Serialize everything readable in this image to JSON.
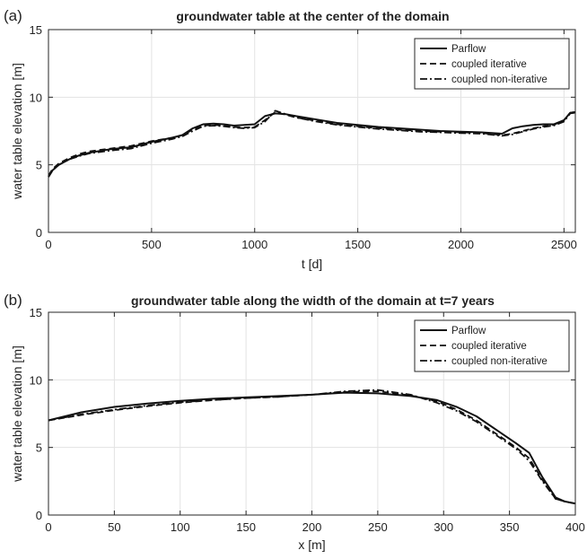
{
  "chart_data": [
    {
      "type": "line",
      "panel_label": "(a)",
      "title": "groundwater table at the center of the domain",
      "xlabel": "t [d]",
      "ylabel": "water table elevation [m]",
      "xlim": [
        0,
        2555
      ],
      "ylim": [
        0,
        15
      ],
      "xticks": [
        0,
        500,
        1000,
        1500,
        2000,
        2500
      ],
      "yticks": [
        0,
        5,
        10,
        15
      ],
      "grid": true,
      "legend_position": "top-right",
      "series": [
        {
          "name": "Parflow",
          "style": "solid",
          "x": [
            0,
            20,
            50,
            100,
            150,
            200,
            300,
            400,
            500,
            600,
            650,
            700,
            750,
            800,
            850,
            900,
            950,
            1000,
            1050,
            1100,
            1150,
            1200,
            1300,
            1400,
            1500,
            1600,
            1700,
            1800,
            1900,
            2000,
            2100,
            2200,
            2250,
            2300,
            2350,
            2400,
            2450,
            2500,
            2530,
            2555
          ],
          "y": [
            4.1,
            4.6,
            5.0,
            5.4,
            5.7,
            5.9,
            6.15,
            6.3,
            6.7,
            7.0,
            7.2,
            7.7,
            8.0,
            8.05,
            8.0,
            7.9,
            7.95,
            8.0,
            8.6,
            8.8,
            8.75,
            8.6,
            8.35,
            8.1,
            7.95,
            7.8,
            7.7,
            7.6,
            7.5,
            7.45,
            7.4,
            7.3,
            7.7,
            7.85,
            7.95,
            8.0,
            8.0,
            8.3,
            8.85,
            8.9
          ]
        },
        {
          "name": "coupled iterative",
          "style": "dashed",
          "x": [
            0,
            20,
            50,
            100,
            150,
            200,
            300,
            400,
            500,
            600,
            650,
            700,
            750,
            800,
            850,
            900,
            950,
            1000,
            1050,
            1100,
            1150,
            1200,
            1300,
            1400,
            1500,
            1600,
            1700,
            1800,
            1900,
            2000,
            2100,
            2200,
            2250,
            2300,
            2350,
            2400,
            2450,
            2500,
            2530,
            2555
          ],
          "y": [
            4.2,
            4.7,
            5.1,
            5.5,
            5.8,
            6.0,
            6.2,
            6.4,
            6.75,
            7.0,
            7.2,
            7.6,
            7.9,
            7.95,
            7.9,
            7.8,
            7.75,
            7.8,
            8.3,
            8.9,
            8.7,
            8.5,
            8.25,
            8.0,
            7.85,
            7.7,
            7.6,
            7.5,
            7.45,
            7.4,
            7.35,
            7.2,
            7.3,
            7.5,
            7.7,
            7.85,
            7.95,
            8.3,
            8.85,
            8.9
          ]
        },
        {
          "name": "coupled non-iterative",
          "style": "dash-dot",
          "x": [
            0,
            20,
            50,
            100,
            150,
            200,
            300,
            400,
            500,
            600,
            650,
            700,
            750,
            800,
            850,
            900,
            950,
            1000,
            1050,
            1100,
            1150,
            1200,
            1300,
            1400,
            1500,
            1600,
            1700,
            1800,
            1900,
            2000,
            2100,
            2200,
            2250,
            2300,
            2350,
            2400,
            2450,
            2500,
            2530,
            2555
          ],
          "y": [
            4.1,
            4.6,
            5.0,
            5.4,
            5.65,
            5.85,
            6.05,
            6.2,
            6.6,
            6.9,
            7.1,
            7.5,
            7.85,
            7.9,
            7.85,
            7.75,
            7.7,
            7.75,
            8.2,
            9.0,
            8.75,
            8.5,
            8.2,
            7.95,
            7.8,
            7.65,
            7.55,
            7.45,
            7.4,
            7.35,
            7.3,
            7.15,
            7.25,
            7.45,
            7.65,
            7.8,
            7.9,
            8.2,
            8.8,
            8.85
          ]
        }
      ]
    },
    {
      "type": "line",
      "panel_label": "(b)",
      "title": "groundwater table along the width of the domain at t=7 years",
      "xlabel": "x [m]",
      "ylabel": "water table elevation [m]",
      "xlim": [
        0,
        400
      ],
      "ylim": [
        0,
        15
      ],
      "xticks": [
        0,
        50,
        100,
        150,
        200,
        250,
        300,
        350,
        400
      ],
      "yticks": [
        0,
        5,
        10,
        15
      ],
      "grid": true,
      "legend_position": "top-right",
      "series": [
        {
          "name": "Parflow",
          "style": "solid",
          "x": [
            0,
            25,
            50,
            75,
            100,
            125,
            150,
            175,
            200,
            225,
            250,
            275,
            295,
            310,
            325,
            340,
            355,
            365,
            375,
            385,
            392,
            400
          ],
          "y": [
            7.0,
            7.6,
            8.0,
            8.25,
            8.45,
            8.6,
            8.7,
            8.8,
            8.9,
            9.05,
            9.0,
            8.8,
            8.5,
            8.0,
            7.3,
            6.3,
            5.3,
            4.6,
            2.8,
            1.3,
            1.0,
            0.85
          ]
        },
        {
          "name": "coupled iterative",
          "style": "dashed",
          "x": [
            0,
            25,
            50,
            75,
            100,
            125,
            150,
            175,
            200,
            225,
            250,
            275,
            295,
            310,
            325,
            340,
            355,
            365,
            375,
            385,
            392,
            400
          ],
          "y": [
            7.0,
            7.4,
            7.75,
            8.05,
            8.3,
            8.5,
            8.65,
            8.75,
            8.9,
            9.1,
            9.15,
            8.85,
            8.4,
            7.8,
            7.0,
            6.0,
            5.0,
            4.2,
            2.6,
            1.2,
            1.0,
            0.85
          ]
        },
        {
          "name": "coupled non-iterative",
          "style": "dash-dot",
          "x": [
            0,
            25,
            50,
            75,
            100,
            125,
            150,
            175,
            200,
            225,
            250,
            275,
            295,
            310,
            325,
            340,
            355,
            365,
            375,
            385,
            392,
            400
          ],
          "y": [
            7.0,
            7.45,
            7.8,
            8.1,
            8.35,
            8.5,
            8.65,
            8.75,
            8.9,
            9.15,
            9.25,
            8.9,
            8.3,
            7.7,
            6.9,
            5.9,
            4.9,
            4.0,
            2.5,
            1.2,
            1.0,
            0.85
          ]
        }
      ]
    }
  ]
}
